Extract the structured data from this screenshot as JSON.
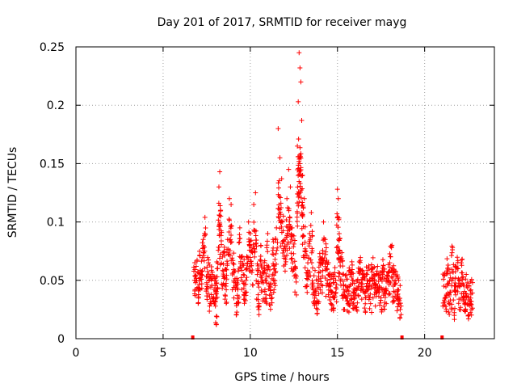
{
  "chart_data": {
    "type": "scatter",
    "title": "Day 201 of 2017, SRMTID for receiver mayg",
    "xlabel": "GPS time / hours",
    "ylabel": "SRMTID / TECUs",
    "xlim": [
      0,
      24
    ],
    "ylim": [
      0,
      0.25
    ],
    "grid": true,
    "marker": "+",
    "color": "#ff0000",
    "x_ticks": [
      0,
      5,
      10,
      15,
      20
    ],
    "x_tick_labels": [
      "0",
      "5",
      "10",
      "15",
      "20"
    ],
    "y_ticks": [
      0,
      0.05,
      0.1,
      0.15,
      0.2,
      0.25
    ],
    "y_tick_labels": [
      "0",
      "0.05",
      "0.1",
      "0.15",
      "0.2",
      "0.25"
    ],
    "gap_markers_x": [
      6.7,
      18.7,
      21.0
    ],
    "segments": [
      {
        "x_start": 6.7,
        "x_end": 18.7,
        "typical_min": 0.02,
        "typical_max": 0.1
      },
      {
        "x_start": 21.0,
        "x_end": 22.8,
        "typical_min": 0.02,
        "typical_max": 0.07
      }
    ],
    "series": [
      {
        "name": "SRMTID",
        "points": [
          [
            6.8,
            0.05
          ],
          [
            6.9,
            0.062
          ],
          [
            7.0,
            0.044
          ],
          [
            7.1,
            0.071
          ],
          [
            7.2,
            0.055
          ],
          [
            7.3,
            0.085
          ],
          [
            7.4,
            0.104
          ],
          [
            7.5,
            0.048
          ],
          [
            7.6,
            0.065
          ],
          [
            7.7,
            0.03
          ],
          [
            7.8,
            0.055
          ],
          [
            7.9,
            0.032
          ],
          [
            8.0,
            0.028
          ],
          [
            8.05,
            0.012
          ],
          [
            8.1,
            0.06
          ],
          [
            8.2,
            0.13
          ],
          [
            8.25,
            0.143
          ],
          [
            8.3,
            0.11
          ],
          [
            8.4,
            0.07
          ],
          [
            8.5,
            0.075
          ],
          [
            8.6,
            0.045
          ],
          [
            8.7,
            0.085
          ],
          [
            8.8,
            0.12
          ],
          [
            8.9,
            0.115
          ],
          [
            9.0,
            0.067
          ],
          [
            9.1,
            0.058
          ],
          [
            9.2,
            0.03
          ],
          [
            9.3,
            0.05
          ],
          [
            9.4,
            0.095
          ],
          [
            9.5,
            0.07
          ],
          [
            9.6,
            0.055
          ],
          [
            9.7,
            0.04
          ],
          [
            9.8,
            0.06
          ],
          [
            9.9,
            0.1
          ],
          [
            10.0,
            0.09
          ],
          [
            10.1,
            0.075
          ],
          [
            10.2,
            0.115
          ],
          [
            10.3,
            0.125
          ],
          [
            10.4,
            0.055
          ],
          [
            10.5,
            0.03
          ],
          [
            10.6,
            0.08
          ],
          [
            10.7,
            0.05
          ],
          [
            10.8,
            0.06
          ],
          [
            10.9,
            0.05
          ],
          [
            11.0,
            0.09
          ],
          [
            11.1,
            0.045
          ],
          [
            11.2,
            0.038
          ],
          [
            11.3,
            0.085
          ],
          [
            11.4,
            0.06
          ],
          [
            11.5,
            0.095
          ],
          [
            11.6,
            0.18
          ],
          [
            11.7,
            0.155
          ],
          [
            11.8,
            0.137
          ],
          [
            11.9,
            0.105
          ],
          [
            12.0,
            0.085
          ],
          [
            12.1,
            0.12
          ],
          [
            12.2,
            0.145
          ],
          [
            12.3,
            0.13
          ],
          [
            12.4,
            0.095
          ],
          [
            12.5,
            0.088
          ],
          [
            12.6,
            0.06
          ],
          [
            12.7,
            0.165
          ],
          [
            12.75,
            0.203
          ],
          [
            12.8,
            0.245
          ],
          [
            12.85,
            0.232
          ],
          [
            12.9,
            0.22
          ],
          [
            12.95,
            0.187
          ],
          [
            13.0,
            0.14
          ],
          [
            13.1,
            0.12
          ],
          [
            13.2,
            0.075
          ],
          [
            13.3,
            0.065
          ],
          [
            13.4,
            0.09
          ],
          [
            13.5,
            0.108
          ],
          [
            13.6,
            0.045
          ],
          [
            13.7,
            0.04
          ],
          [
            13.8,
            0.03
          ],
          [
            13.9,
            0.05
          ],
          [
            14.0,
            0.07
          ],
          [
            14.1,
            0.065
          ],
          [
            14.2,
            0.1
          ],
          [
            14.3,
            0.085
          ],
          [
            14.4,
            0.06
          ],
          [
            14.5,
            0.055
          ],
          [
            14.6,
            0.045
          ],
          [
            14.7,
            0.04
          ],
          [
            14.8,
            0.035
          ],
          [
            14.9,
            0.05
          ],
          [
            15.0,
            0.128
          ],
          [
            15.05,
            0.12
          ],
          [
            15.1,
            0.09
          ],
          [
            15.2,
            0.07
          ],
          [
            15.3,
            0.055
          ],
          [
            15.4,
            0.04
          ],
          [
            15.5,
            0.035
          ],
          [
            15.6,
            0.03
          ],
          [
            15.7,
            0.045
          ],
          [
            15.8,
            0.055
          ],
          [
            15.9,
            0.04
          ],
          [
            16.0,
            0.035
          ],
          [
            16.1,
            0.025
          ],
          [
            16.2,
            0.045
          ],
          [
            16.3,
            0.067
          ],
          [
            16.4,
            0.05
          ],
          [
            16.5,
            0.04
          ],
          [
            16.6,
            0.035
          ],
          [
            16.7,
            0.055
          ],
          [
            16.8,
            0.045
          ],
          [
            16.9,
            0.03
          ],
          [
            17.0,
            0.06
          ],
          [
            17.1,
            0.05
          ],
          [
            17.2,
            0.04
          ],
          [
            17.3,
            0.062
          ],
          [
            17.4,
            0.045
          ],
          [
            17.5,
            0.035
          ],
          [
            17.6,
            0.055
          ],
          [
            17.7,
            0.04
          ],
          [
            17.8,
            0.03
          ],
          [
            17.9,
            0.05
          ],
          [
            18.0,
            0.065
          ],
          [
            18.1,
            0.078
          ],
          [
            18.2,
            0.045
          ],
          [
            18.3,
            0.04
          ],
          [
            18.4,
            0.035
          ],
          [
            18.5,
            0.03
          ],
          [
            18.6,
            0.025
          ],
          [
            21.1,
            0.045
          ],
          [
            21.2,
            0.035
          ],
          [
            21.3,
            0.058
          ],
          [
            21.4,
            0.03
          ],
          [
            21.5,
            0.04
          ],
          [
            21.6,
            0.078
          ],
          [
            21.7,
            0.02
          ],
          [
            21.8,
            0.045
          ],
          [
            21.9,
            0.06
          ],
          [
            22.0,
            0.025
          ],
          [
            22.1,
            0.065
          ],
          [
            22.2,
            0.035
          ],
          [
            22.3,
            0.03
          ],
          [
            22.4,
            0.045
          ],
          [
            22.5,
            0.02
          ],
          [
            22.6,
            0.03
          ],
          [
            22.7,
            0.025
          ]
        ]
      }
    ]
  }
}
